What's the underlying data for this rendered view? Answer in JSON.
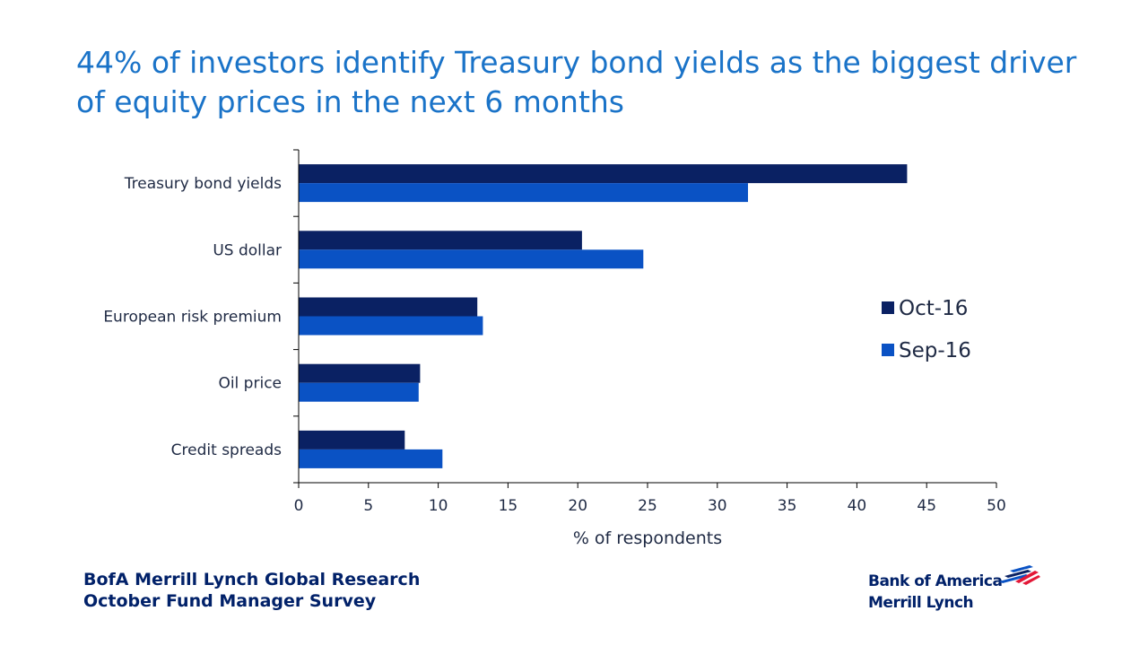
{
  "slide": {
    "title": "44% of investors identify Treasury bond yields as the biggest driver of equity prices in the next 6 months"
  },
  "footer": {
    "line1": "BofA Merrill Lynch Global Research",
    "line2": "October Fund Manager Survey"
  },
  "logo": {
    "line1": "Bank of America",
    "line2": "Merrill Lynch"
  },
  "colors": {
    "title": "#1a73c8",
    "oct": "#0a2163",
    "sep": "#0a52c4",
    "axis": "#000000",
    "label": "#1f2a44"
  },
  "chart_data": {
    "type": "bar",
    "orientation": "horizontal",
    "categories": [
      "Treasury bond yields",
      "US dollar",
      "European risk premium",
      "Oil price",
      "Credit spreads"
    ],
    "series": [
      {
        "name": "Oct-16",
        "values": [
          43.6,
          20.3,
          12.8,
          8.7,
          7.6
        ]
      },
      {
        "name": "Sep-16",
        "values": [
          32.2,
          24.7,
          13.2,
          8.6,
          10.3
        ]
      }
    ],
    "xlabel": "% of respondents",
    "xlim": [
      0,
      50
    ],
    "xticks": [
      "0",
      "5",
      "10",
      "15",
      "20",
      "25",
      "30",
      "35",
      "40",
      "45",
      "50"
    ],
    "legend_position": "right",
    "grid": false
  }
}
